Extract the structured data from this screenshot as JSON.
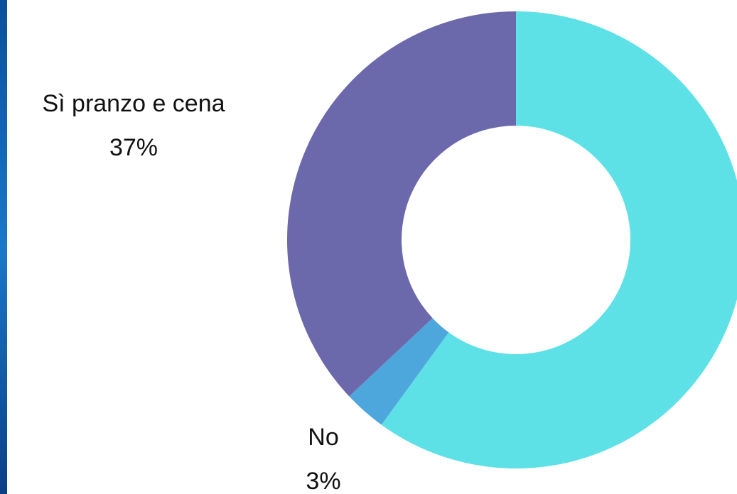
{
  "chart_data": {
    "type": "donut",
    "categories": [
      null,
      "No",
      "Sì pranzo e cena"
    ],
    "values": [
      60,
      3,
      37
    ],
    "value_labels": [
      null,
      "3%",
      "37%"
    ],
    "colors": [
      "#5ee1e6",
      "#4ea7dc",
      "#6b68ab"
    ]
  }
}
